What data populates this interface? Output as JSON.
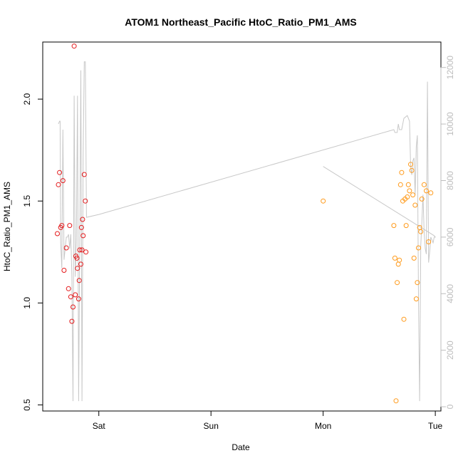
{
  "chart_data": {
    "type": "scatter",
    "title": "ATOM1 Northeast_Pacific HtoC_Ratio_PM1_AMS",
    "xlabel": "Date",
    "ylabel": "HtoC_Ratio_PM1_AMS",
    "x_ticks": [
      {
        "label": "Sat",
        "day": 0
      },
      {
        "label": "Sun",
        "day": 1
      },
      {
        "label": "Mon",
        "day": 2
      },
      {
        "label": "Tue",
        "day": 3
      }
    ],
    "xlim": [
      -0.5,
      3.05
    ],
    "ylim": [
      0.47,
      2.28
    ],
    "y_ticks": [
      0.5,
      1.0,
      1.5,
      2.0
    ],
    "y2lim": [
      -150,
      12900
    ],
    "y2_ticks": [
      0,
      2000,
      4000,
      6000,
      8000,
      10000,
      12000
    ],
    "grid": false,
    "series": [
      {
        "color": "#e41a1c",
        "points": [
          [
            -0.37,
            1.34
          ],
          [
            -0.36,
            1.58
          ],
          [
            -0.35,
            1.64
          ],
          [
            -0.34,
            1.37
          ],
          [
            -0.33,
            1.38
          ],
          [
            -0.32,
            1.6
          ],
          [
            -0.31,
            1.16
          ],
          [
            -0.29,
            1.27
          ],
          [
            -0.27,
            1.07
          ],
          [
            -0.26,
            1.38
          ],
          [
            -0.25,
            1.03
          ],
          [
            -0.24,
            0.91
          ],
          [
            -0.23,
            0.98
          ],
          [
            -0.22,
            2.26
          ],
          [
            -0.21,
            1.04
          ],
          [
            -0.205,
            1.23
          ],
          [
            -0.195,
            1.22
          ],
          [
            -0.19,
            1.17
          ],
          [
            -0.18,
            1.02
          ],
          [
            -0.175,
            1.11
          ],
          [
            -0.17,
            1.26
          ],
          [
            -0.16,
            1.19
          ],
          [
            -0.155,
            1.37
          ],
          [
            -0.15,
            1.26
          ],
          [
            -0.145,
            1.41
          ],
          [
            -0.14,
            1.33
          ],
          [
            -0.13,
            1.63
          ],
          [
            -0.12,
            1.5
          ],
          [
            -0.115,
            1.25
          ]
        ]
      },
      {
        "color": "#ff9a1a",
        "points": [
          [
            2.0,
            1.5
          ],
          [
            2.63,
            1.38
          ],
          [
            2.64,
            1.22
          ],
          [
            2.65,
            0.52
          ],
          [
            2.66,
            1.1
          ],
          [
            2.67,
            1.19
          ],
          [
            2.68,
            1.21
          ],
          [
            2.69,
            1.58
          ],
          [
            2.7,
            1.64
          ],
          [
            2.71,
            1.5
          ],
          [
            2.72,
            0.92
          ],
          [
            2.73,
            1.51
          ],
          [
            2.74,
            1.38
          ],
          [
            2.75,
            1.52
          ],
          [
            2.76,
            1.58
          ],
          [
            2.77,
            1.55
          ],
          [
            2.78,
            1.68
          ],
          [
            2.79,
            1.65
          ],
          [
            2.8,
            1.53
          ],
          [
            2.81,
            1.22
          ],
          [
            2.82,
            1.48
          ],
          [
            2.83,
            1.02
          ],
          [
            2.84,
            1.1
          ],
          [
            2.85,
            1.27
          ],
          [
            2.86,
            1.37
          ],
          [
            2.87,
            1.35
          ],
          [
            2.88,
            1.51
          ],
          [
            2.9,
            1.58
          ],
          [
            2.92,
            1.55
          ],
          [
            2.94,
            1.3
          ],
          [
            2.96,
            1.54
          ]
        ]
      }
    ],
    "altitude_line": {
      "color": "#c8c8c8",
      "points": [
        [
          -0.36,
          10000
        ],
        [
          -0.35,
          10100
        ],
        [
          -0.345,
          10100
        ],
        [
          -0.34,
          5800
        ],
        [
          -0.33,
          4900
        ],
        [
          -0.32,
          9800
        ],
        [
          -0.31,
          5200
        ],
        [
          -0.3,
          5600
        ],
        [
          -0.29,
          6000
        ],
        [
          -0.28,
          6000
        ],
        [
          -0.27,
          6100
        ],
        [
          -0.26,
          5600
        ],
        [
          -0.25,
          6100
        ],
        [
          -0.24,
          4600
        ],
        [
          -0.23,
          200
        ],
        [
          -0.22,
          11000
        ],
        [
          -0.21,
          4600
        ],
        [
          -0.2,
          5800
        ],
        [
          -0.19,
          11000
        ],
        [
          -0.18,
          200
        ],
        [
          -0.17,
          6000
        ],
        [
          -0.16,
          11900
        ],
        [
          -0.15,
          200
        ],
        [
          -0.14,
          8800
        ],
        [
          -0.13,
          12200
        ],
        [
          -0.12,
          12200
        ],
        [
          -0.11,
          6700
        ],
        [
          0.0,
          6800
        ],
        [
          2.63,
          9800
        ],
        [
          2.64,
          9700
        ],
        [
          2.66,
          9700
        ],
        [
          2.67,
          10000
        ],
        [
          2.68,
          9800
        ],
        [
          2.7,
          9800
        ],
        [
          2.72,
          10200
        ],
        [
          2.75,
          10300
        ],
        [
          2.77,
          10100
        ],
        [
          2.78,
          8500
        ],
        [
          2.79,
          8200
        ],
        [
          2.8,
          8700
        ],
        [
          2.81,
          8800
        ],
        [
          2.82,
          7500
        ],
        [
          2.83,
          9200
        ],
        [
          2.84,
          9600
        ],
        [
          2.85,
          3900
        ],
        [
          2.86,
          200
        ],
        [
          2.87,
          5700
        ],
        [
          2.88,
          6500
        ],
        [
          2.89,
          7500
        ],
        [
          2.9,
          6200
        ],
        [
          2.91,
          5600
        ],
        [
          2.92,
          5400
        ],
        [
          2.93,
          11500
        ],
        [
          2.94,
          5100
        ],
        [
          2.95,
          5500
        ],
        [
          2.96,
          6000
        ],
        [
          2.97,
          5900
        ],
        [
          2.98,
          5800
        ],
        [
          2.99,
          6000
        ],
        [
          3.0,
          6000
        ],
        [
          2.99,
          6050
        ],
        [
          2.0,
          8500
        ]
      ]
    }
  }
}
